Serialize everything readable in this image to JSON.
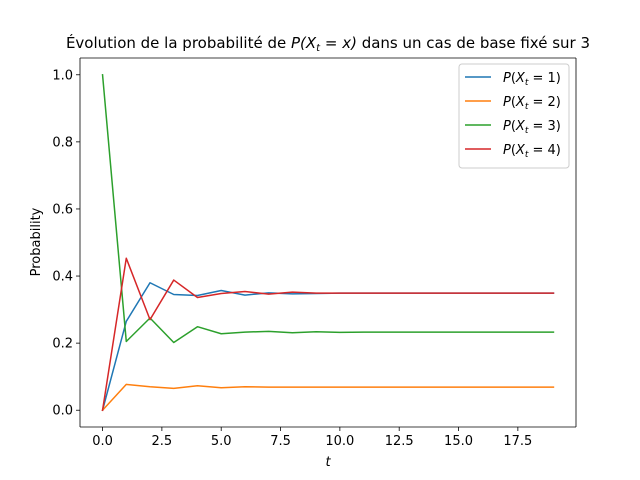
{
  "chart_data": {
    "type": "line",
    "title": {
      "prefix": "Évolution de la probabilité de ",
      "math": "P(X",
      "math_sub": "t",
      "math_rest": " = x)",
      "suffix": " dans un cas de base fixé sur 3"
    },
    "xlabel": "t",
    "ylabel": "Probability",
    "xlim": [
      -0.95,
      19.95
    ],
    "ylim": [
      -0.05,
      1.05
    ],
    "xticks": [
      0.0,
      2.5,
      5.0,
      7.5,
      10.0,
      12.5,
      15.0,
      17.5
    ],
    "xtick_labels": [
      "0.0",
      "2.5",
      "5.0",
      "7.5",
      "10.0",
      "12.5",
      "15.0",
      "17.5"
    ],
    "yticks": [
      0.0,
      0.2,
      0.4,
      0.6,
      0.8,
      1.0
    ],
    "ytick_labels": [
      "0.0",
      "0.2",
      "0.4",
      "0.6",
      "0.8",
      "1.0"
    ],
    "grid": false,
    "legend_position": "top-right",
    "x": [
      0,
      1,
      2,
      3,
      4,
      5,
      6,
      7,
      8,
      9,
      10,
      11,
      12,
      13,
      14,
      15,
      16,
      17,
      18,
      19
    ],
    "series": [
      {
        "name": "P(X_t = 1)",
        "label_k": "1",
        "color": "#1f77b4",
        "values": [
          0.0,
          0.265,
          0.38,
          0.345,
          0.342,
          0.357,
          0.343,
          0.35,
          0.347,
          0.348,
          0.349,
          0.349,
          0.349,
          0.349,
          0.349,
          0.349,
          0.349,
          0.349,
          0.349,
          0.349
        ]
      },
      {
        "name": "P(X_t = 2)",
        "label_k": "2",
        "color": "#ff7f0e",
        "values": [
          0.0,
          0.077,
          0.07,
          0.065,
          0.073,
          0.067,
          0.07,
          0.069,
          0.069,
          0.069,
          0.069,
          0.069,
          0.069,
          0.069,
          0.069,
          0.069,
          0.069,
          0.069,
          0.069,
          0.069
        ]
      },
      {
        "name": "P(X_t = 3)",
        "label_k": "3",
        "color": "#2ca02c",
        "values": [
          1.0,
          0.205,
          0.275,
          0.202,
          0.249,
          0.228,
          0.233,
          0.235,
          0.231,
          0.234,
          0.232,
          0.233,
          0.233,
          0.233,
          0.233,
          0.233,
          0.233,
          0.233,
          0.233,
          0.233
        ]
      },
      {
        "name": "P(X_t = 4)",
        "label_k": "4",
        "color": "#d62728",
        "values": [
          0.0,
          0.453,
          0.27,
          0.388,
          0.336,
          0.348,
          0.354,
          0.346,
          0.352,
          0.349,
          0.349,
          0.349,
          0.349,
          0.349,
          0.349,
          0.349,
          0.349,
          0.349,
          0.349,
          0.349
        ]
      }
    ]
  }
}
